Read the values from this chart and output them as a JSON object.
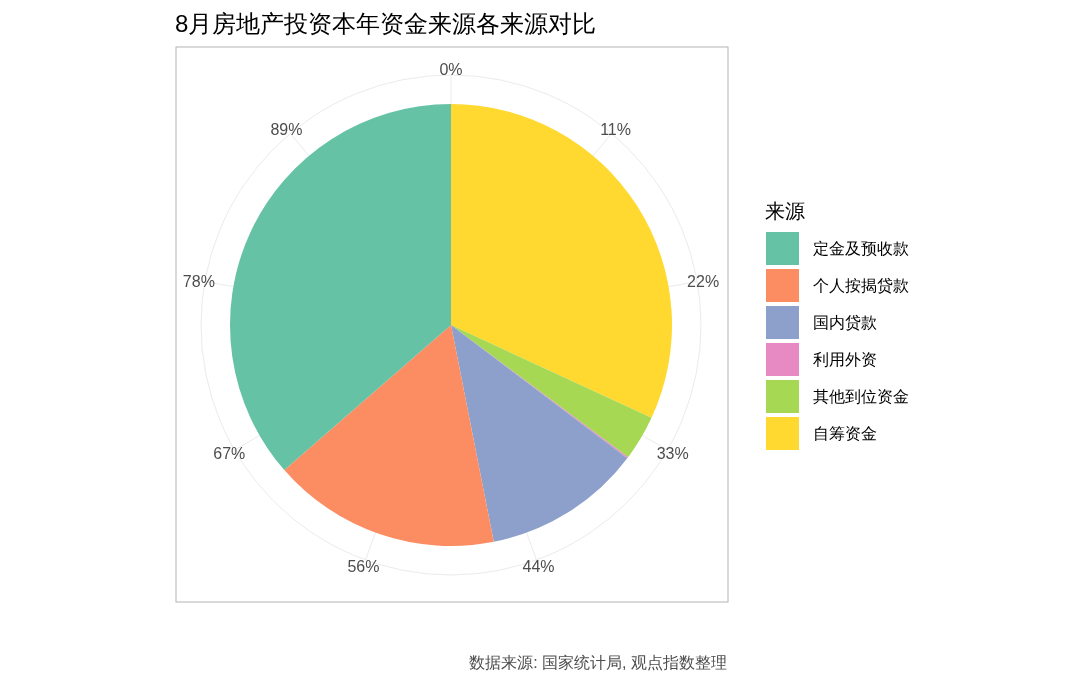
{
  "chart_data": {
    "type": "pie",
    "title": "8月房地产投资本年资金来源各来源对比",
    "legend_title": "来源",
    "categories": [
      "定金及预收款",
      "个人按揭贷款",
      "国内贷款",
      "利用外资",
      "其他到位资金",
      "自筹资金"
    ],
    "values": [
      36.4,
      16.7,
      11.6,
      0.1,
      3.3,
      31.9
    ],
    "colors": [
      "#66c2a5",
      "#fc8d62",
      "#8da0cb",
      "#e78ac3",
      "#a6d854",
      "#ffd92f"
    ],
    "grid": true,
    "legend": "right",
    "annotations": [
      "0%",
      "11%",
      "22%",
      "33%",
      "44%",
      "56%",
      "67%",
      "78%",
      "89%",
      "数据来源: 国家统计局, 观点指数整理"
    ]
  }
}
